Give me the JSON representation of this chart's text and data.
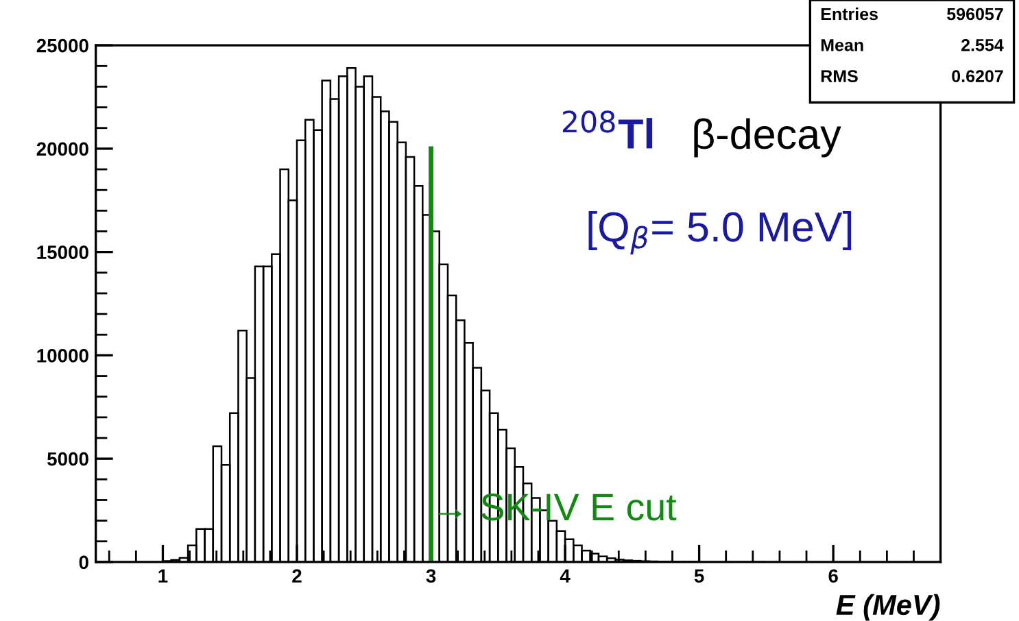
{
  "chart_data": {
    "type": "histogram",
    "color": "#000000",
    "bins": [
      1.0,
      1.0625,
      1.125,
      1.1875,
      1.25,
      1.3125,
      1.375,
      1.4375,
      1.5,
      1.5625,
      1.625,
      1.6875,
      1.75,
      1.8125,
      1.875,
      1.9375,
      2.0,
      2.0625,
      2.125,
      2.1875,
      2.25,
      2.3125,
      2.375,
      2.4375,
      2.5,
      2.5625,
      2.625,
      2.6875,
      2.75,
      2.8125,
      2.875,
      2.9375,
      3.0,
      3.0625,
      3.125,
      3.1875,
      3.25,
      3.3125,
      3.375,
      3.4375,
      3.5,
      3.5625,
      3.625,
      3.6875,
      3.75,
      3.8125,
      3.875,
      3.9375,
      4.0,
      4.0625,
      4.125,
      4.1875,
      4.25,
      4.3125,
      4.375,
      4.4375,
      4.5,
      4.5625,
      4.625,
      4.6875,
      4.75,
      4.8125,
      4.875,
      4.9375,
      5.0,
      5.0625,
      5.125,
      5.1875,
      5.25,
      5.3125,
      5.375,
      5.4375,
      5.5
    ],
    "values": [
      50,
      100,
      200,
      800,
      1600,
      1600,
      5600,
      4700,
      7200,
      11200,
      8900,
      14300,
      14300,
      14900,
      19000,
      17500,
      20400,
      21400,
      20900,
      23300,
      22400,
      23500,
      23900,
      23000,
      23500,
      22500,
      21800,
      21300,
      20300,
      19600,
      18200,
      16800,
      16000,
      14400,
      12900,
      11700,
      10600,
      9400,
      8300,
      7200,
      6400,
      5500,
      4600,
      3800,
      3100,
      2500,
      2000,
      1500,
      1100,
      800,
      550,
      400,
      270,
      180,
      110,
      80,
      60,
      40,
      30,
      20,
      20,
      10,
      10,
      10,
      0,
      0,
      0,
      0,
      0,
      0,
      0,
      0
    ],
    "xlim": [
      0.5,
      6.8
    ],
    "ylim": [
      0,
      25000
    ],
    "xticks": [
      1,
      2,
      3,
      4,
      5,
      6
    ],
    "yticks": [
      0,
      5000,
      10000,
      15000,
      20000,
      25000
    ],
    "xlabel": "E (MeV)",
    "ref_lines": [
      {
        "axis": "x",
        "value": 3,
        "label": "→ SK-IV E cut",
        "color": "#118a11"
      }
    ],
    "annotations": [
      "$^{208}$Tl",
      "β-decay",
      "[Q$_{β}$= 5.0 MeV]",
      "Entries",
      "596057",
      "Mean",
      "2.554",
      "RMS",
      "0.6207"
    ]
  }
}
